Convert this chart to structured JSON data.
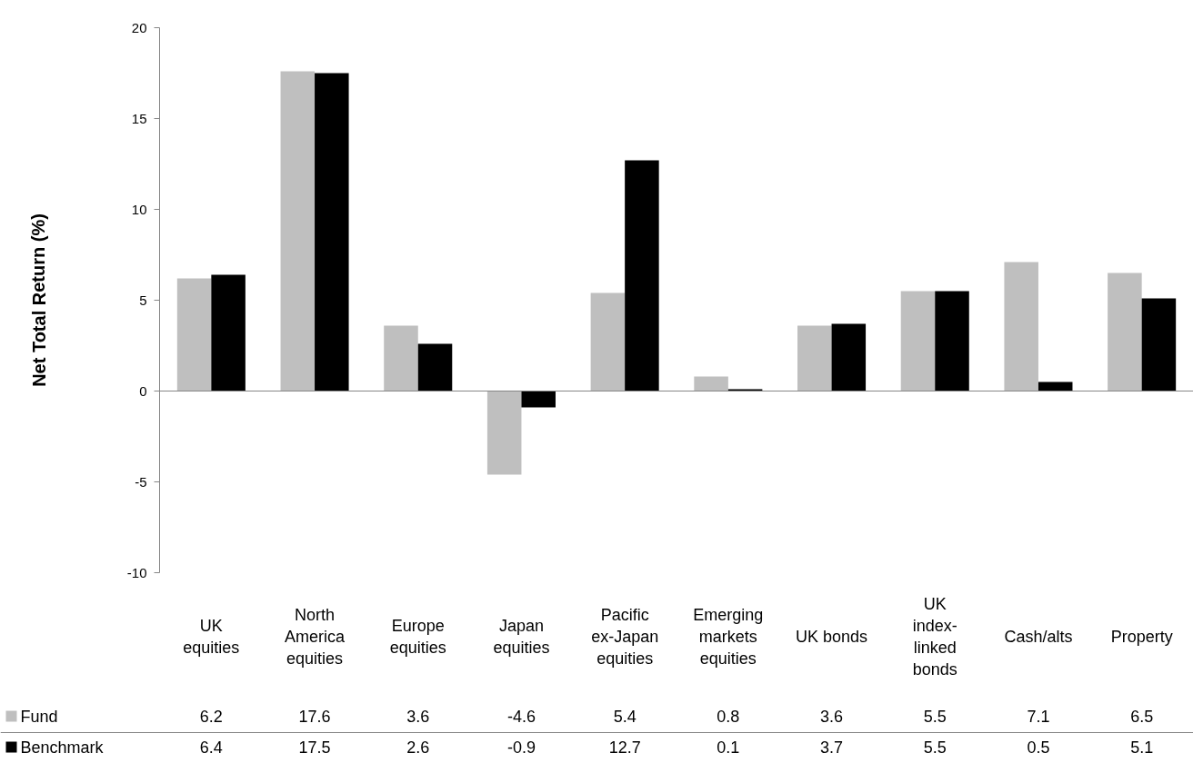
{
  "chart_data": {
    "type": "bar",
    "ylabel": "Net Total Return (%)",
    "categories": [
      "UK equities",
      "North America equities",
      "Europe equities",
      "Japan equities",
      "Pacific ex-Japan equities",
      "Emerging markets equities",
      "UK bonds",
      "UK index-linked bonds",
      "Cash/alts",
      "Property"
    ],
    "series": [
      {
        "name": "Fund",
        "color": "#bfbfbf",
        "values": [
          6.2,
          17.6,
          3.6,
          -4.6,
          5.4,
          0.8,
          3.6,
          5.5,
          7.1,
          6.5
        ]
      },
      {
        "name": "Benchmark",
        "color": "#000000",
        "values": [
          6.4,
          17.5,
          2.6,
          -0.9,
          12.7,
          0.1,
          3.7,
          5.5,
          0.5,
          5.1
        ]
      }
    ],
    "ylim": [
      -10,
      20
    ],
    "yticks": [
      -10,
      -5,
      0,
      5,
      10,
      15,
      20
    ],
    "data_labels": true,
    "legend": "bottom"
  }
}
